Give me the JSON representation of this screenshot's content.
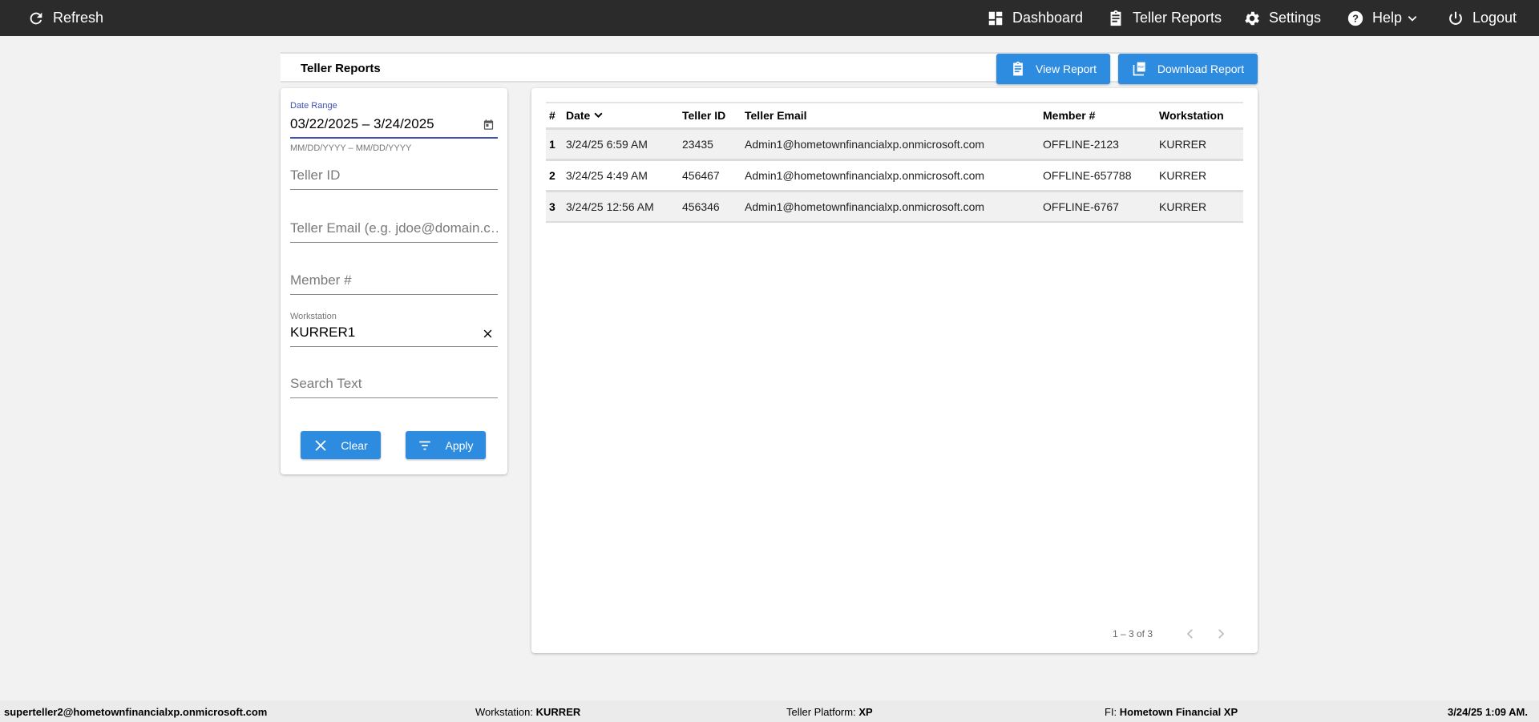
{
  "topbar": {
    "refresh": "Refresh",
    "nav": [
      {
        "label": "Dashboard",
        "icon": "dashboard-icon"
      },
      {
        "label": "Teller Reports",
        "icon": "clipboard-icon"
      },
      {
        "label": "Settings",
        "icon": "gear-icon"
      },
      {
        "label": "Help",
        "icon": "help-icon"
      },
      {
        "label": "Logout",
        "icon": "power-icon"
      }
    ]
  },
  "titlebar": {
    "title": "Teller Reports",
    "view_report": "View Report",
    "download_report": "Download Report"
  },
  "filters": {
    "date_range_label": "Date Range",
    "date_range_value": "03/22/2025 – 3/24/2025",
    "date_range_hint": "MM/DD/YYYY – MM/DD/YYYY",
    "teller_id_placeholder": "Teller ID",
    "teller_email_placeholder": "Teller Email (e.g. jdoe@domain.c…",
    "member_placeholder": "Member #",
    "workstation_label": "Workstation",
    "workstation_value": "KURRER1",
    "search_placeholder": "Search Text",
    "clear": "Clear",
    "apply": "Apply"
  },
  "table": {
    "columns": [
      "#",
      "Date",
      "Teller ID",
      "Teller Email",
      "Member #",
      "Workstation"
    ],
    "rows": [
      [
        "1",
        "3/24/25 6:59 AM",
        "23435",
        "Admin1@hometownfinancialxp.onmicrosoft.com",
        "OFFLINE-2123",
        "KURRER"
      ],
      [
        "2",
        "3/24/25 4:49 AM",
        "456467",
        "Admin1@hometownfinancialxp.onmicrosoft.com",
        "OFFLINE-657788",
        "KURRER"
      ],
      [
        "3",
        "3/24/25 12:56 AM",
        "456346",
        "Admin1@hometownfinancialxp.onmicrosoft.com",
        "OFFLINE-6767",
        "KURRER"
      ]
    ],
    "pagination": "1 – 3 of 3"
  },
  "footer": {
    "user": "superteller2@hometownfinancialxp.onmicrosoft.com",
    "workstation_label": "Workstation:",
    "workstation": "KURRER",
    "platform_label": "Teller Platform:",
    "platform": "XP",
    "fi_label": "FI:",
    "fi": "Hometown Financial XP",
    "datetime": "3/24/25 1:09 AM."
  },
  "colors": {
    "primary": "#2e8ce0",
    "topbar": "#2b2b2b",
    "focus": "#3f51b5"
  }
}
